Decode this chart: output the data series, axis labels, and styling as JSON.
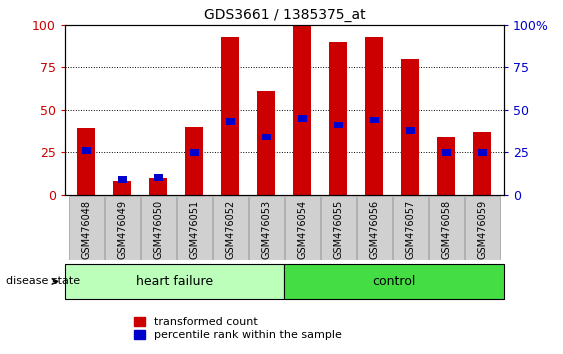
{
  "title": "GDS3661 / 1385375_at",
  "categories": [
    "GSM476048",
    "GSM476049",
    "GSM476050",
    "GSM476051",
    "GSM476052",
    "GSM476053",
    "GSM476054",
    "GSM476055",
    "GSM476056",
    "GSM476057",
    "GSM476058",
    "GSM476059"
  ],
  "red_values": [
    39,
    8,
    10,
    40,
    93,
    61,
    100,
    90,
    93,
    80,
    34,
    37
  ],
  "blue_values": [
    26,
    9,
    10,
    25,
    43,
    34,
    45,
    41,
    44,
    38,
    25,
    25
  ],
  "bar_color": "#cc0000",
  "blue_color": "#0000cc",
  "ylim": [
    0,
    100
  ],
  "yticks": [
    0,
    25,
    50,
    75,
    100
  ],
  "heart_failure_count": 6,
  "control_count": 6,
  "heart_failure_label": "heart failure",
  "control_label": "control",
  "disease_state_label": "disease state",
  "legend_red": "transformed count",
  "legend_blue": "percentile rank within the sample",
  "group_hf_color": "#bbffbb",
  "group_ctrl_color": "#44dd44",
  "ylabel_color_left": "#cc0000",
  "ylabel_color_right": "#0000cc",
  "bar_width": 0.5,
  "right_ytick_labels": [
    "0",
    "25",
    "50",
    "75",
    "100%"
  ]
}
